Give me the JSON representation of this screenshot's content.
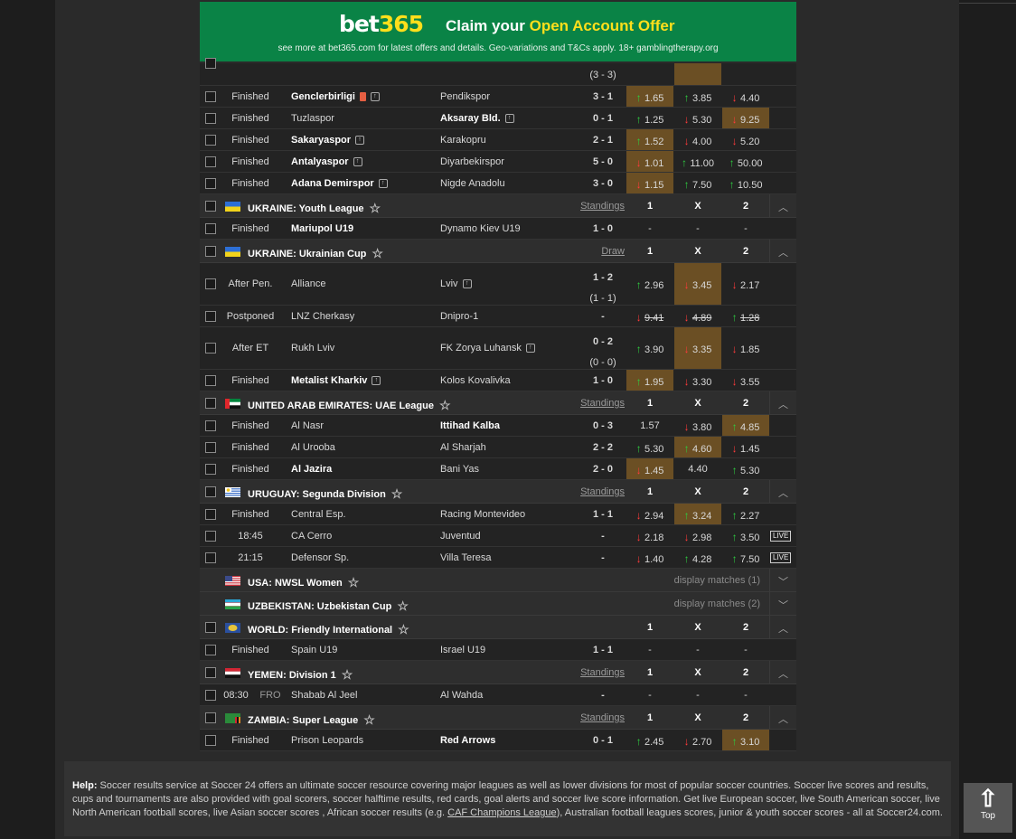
{
  "banner": {
    "logo_a": "bet",
    "logo_b": "365",
    "claim_a": "Claim your ",
    "claim_b": "Open Account Offer",
    "fine": "see more at bet365.com for latest offers and details. Geo-variations and T&Cs apply. 18+ gamblingtherapy.org"
  },
  "partial": {
    "score": "(3 - 3)"
  },
  "rows": [
    {
      "type": "m",
      "status": "Finished",
      "home": "Genclerbirligi",
      "hb": true,
      "hred": true,
      "htv": true,
      "away": "Pendikspor",
      "score": "3 - 1",
      "o": [
        [
          "1.65",
          "up",
          1
        ],
        [
          "3.85",
          "up",
          0
        ],
        [
          "4.40",
          "dn",
          0
        ]
      ]
    },
    {
      "type": "m",
      "status": "Finished",
      "home": "Tuzlaspor",
      "away": "Aksaray Bld.",
      "ab": true,
      "atv": true,
      "score": "0 - 1",
      "o": [
        [
          "1.25",
          "up",
          0
        ],
        [
          "5.30",
          "dn",
          0
        ],
        [
          "9.25",
          "dn",
          1
        ]
      ]
    },
    {
      "type": "m",
      "status": "Finished",
      "home": "Sakaryaspor",
      "hb": true,
      "htv": true,
      "away": "Karakopru",
      "score": "2 - 1",
      "o": [
        [
          "1.52",
          "up",
          1
        ],
        [
          "4.00",
          "dn",
          0
        ],
        [
          "5.20",
          "dn",
          0
        ]
      ]
    },
    {
      "type": "m",
      "status": "Finished",
      "home": "Antalyaspor",
      "hb": true,
      "htv": true,
      "away": "Diyarbekirspor",
      "score": "5 - 0",
      "o": [
        [
          "1.01",
          "dn",
          1
        ],
        [
          "11.00",
          "up",
          0
        ],
        [
          "50.00",
          "up",
          0
        ]
      ]
    },
    {
      "type": "m",
      "status": "Finished",
      "home": "Adana Demirspor",
      "hb": true,
      "htv": true,
      "away": "Nigde Anadolu",
      "score": "3 - 0",
      "o": [
        [
          "1.15",
          "dn",
          1
        ],
        [
          "7.50",
          "up",
          0
        ],
        [
          "10.50",
          "up",
          0
        ]
      ]
    },
    {
      "type": "h",
      "flag": "ua",
      "name": "UKRAINE: Youth League",
      "stand": "Standings",
      "c1": "1",
      "cx": "X",
      "c2": "2",
      "chev": "^"
    },
    {
      "type": "m",
      "status": "Finished",
      "home": "Mariupol U19",
      "hb": true,
      "away": "Dynamo Kiev U19",
      "score": "1 - 0",
      "o": [
        [
          "-",
          "",
          0
        ],
        [
          "-",
          "",
          0
        ],
        [
          "-",
          "",
          0
        ]
      ]
    },
    {
      "type": "h",
      "flag": "ua",
      "name": "UKRAINE: Ukrainian Cup",
      "stand": "Draw",
      "c1": "1",
      "cx": "X",
      "c2": "2",
      "chev": "^"
    },
    {
      "type": "m2",
      "status": "After Pen.",
      "home": "Alliance",
      "away": "Lviv",
      "atv": true,
      "score": "1 - 2",
      "sub": "(1 - 1)",
      "o": [
        [
          "2.96",
          "up",
          0
        ],
        [
          "3.45",
          "dn",
          1
        ],
        [
          "2.17",
          "dn",
          0
        ]
      ]
    },
    {
      "type": "m",
      "status": "Postponed",
      "home": "LNZ Cherkasy",
      "away": "Dnipro-1",
      "score": "-",
      "o": [
        [
          "9.41",
          "dn",
          0,
          1
        ],
        [
          "4.89",
          "dn",
          0,
          1
        ],
        [
          "1.28",
          "up",
          0,
          1
        ]
      ]
    },
    {
      "type": "m2",
      "status": "After ET",
      "home": "Rukh Lviv",
      "away": "FK Zorya Luhansk",
      "atv": true,
      "score": "0 - 2",
      "sub": "(0 - 0)",
      "o": [
        [
          "3.90",
          "up",
          0
        ],
        [
          "3.35",
          "dn",
          1
        ],
        [
          "1.85",
          "dn",
          0
        ]
      ]
    },
    {
      "type": "m",
      "status": "Finished",
      "home": "Metalist Kharkiv",
      "hb": true,
      "htv": true,
      "away": "Kolos Kovalivka",
      "score": "1 - 0",
      "o": [
        [
          "1.95",
          "up",
          1
        ],
        [
          "3.30",
          "dn",
          0
        ],
        [
          "3.55",
          "dn",
          0
        ]
      ]
    },
    {
      "type": "h",
      "flag": "ae",
      "name": "UNITED ARAB EMIRATES: UAE League",
      "stand": "Standings",
      "c1": "1",
      "cx": "X",
      "c2": "2",
      "chev": "^"
    },
    {
      "type": "m",
      "status": "Finished",
      "home": "Al Nasr",
      "away": "Ittihad Kalba",
      "ab": true,
      "score": "0 - 3",
      "o": [
        [
          "1.57",
          "",
          0
        ],
        [
          "3.80",
          "dn",
          0
        ],
        [
          "4.85",
          "up",
          1
        ]
      ]
    },
    {
      "type": "m",
      "status": "Finished",
      "home": "Al Urooba",
      "away": "Al Sharjah",
      "score": "2 - 2",
      "o": [
        [
          "5.30",
          "up",
          0
        ],
        [
          "4.60",
          "up",
          1
        ],
        [
          "1.45",
          "dn",
          0
        ]
      ]
    },
    {
      "type": "m",
      "status": "Finished",
      "home": "Al Jazira",
      "hb": true,
      "away": "Bani Yas",
      "score": "2 - 0",
      "o": [
        [
          "1.45",
          "dn",
          1
        ],
        [
          "4.40",
          "",
          0
        ],
        [
          "5.30",
          "up",
          0
        ]
      ]
    },
    {
      "type": "h",
      "flag": "uy",
      "name": "URUGUAY: Segunda Division",
      "stand": "Standings",
      "c1": "1",
      "cx": "X",
      "c2": "2",
      "chev": "^"
    },
    {
      "type": "m",
      "status": "Finished",
      "home": "Central Esp.",
      "away": "Racing Montevideo",
      "score": "1 - 1",
      "o": [
        [
          "2.94",
          "dn",
          0
        ],
        [
          "3.24",
          "up",
          1
        ],
        [
          "2.27",
          "up",
          0
        ]
      ]
    },
    {
      "type": "m",
      "status": "18:45",
      "home": "CA Cerro",
      "away": "Juventud",
      "score": "-",
      "o": [
        [
          "2.18",
          "dn",
          0
        ],
        [
          "2.98",
          "dn",
          0
        ],
        [
          "3.50",
          "up",
          0
        ]
      ],
      "live": "LIVE"
    },
    {
      "type": "m",
      "status": "21:15",
      "home": "Defensor Sp.",
      "away": "Villa Teresa",
      "score": "-",
      "o": [
        [
          "1.40",
          "dn",
          0
        ],
        [
          "4.28",
          "up",
          0
        ],
        [
          "7.50",
          "up",
          0
        ]
      ],
      "live": "LIVE"
    },
    {
      "type": "hc",
      "flag": "us",
      "name": "USA: NWSL Women",
      "disp": "display matches (1)",
      "chev": "v"
    },
    {
      "type": "hc",
      "flag": "uz",
      "name": "UZBEKISTAN: Uzbekistan Cup",
      "disp": "display matches (2)",
      "chev": "v"
    },
    {
      "type": "h",
      "flag": "world",
      "name": "WORLD: Friendly International",
      "stand": "",
      "c1": "1",
      "cx": "X",
      "c2": "2",
      "chev": "^"
    },
    {
      "type": "m",
      "status": "Finished",
      "home": "Spain U19",
      "away": "Israel U19",
      "score": "1 - 1",
      "o": [
        [
          "-",
          "",
          0
        ],
        [
          "-",
          "",
          0
        ],
        [
          "-",
          "",
          0
        ]
      ]
    },
    {
      "type": "h",
      "flag": "ye",
      "name": "YEMEN: Division 1",
      "stand": "Standings",
      "c1": "1",
      "cx": "X",
      "c2": "2",
      "chev": "^"
    },
    {
      "type": "m",
      "status": "08:30",
      "fro": "FRO",
      "home": "Shabab Al Jeel",
      "away": "Al Wahda",
      "score": "-",
      "o": [
        [
          "-",
          "",
          0
        ],
        [
          "-",
          "",
          0
        ],
        [
          "-",
          "",
          0
        ]
      ]
    },
    {
      "type": "h",
      "flag": "zm",
      "name": "ZAMBIA: Super League",
      "stand": "Standings",
      "c1": "1",
      "cx": "X",
      "c2": "2",
      "chev": "^"
    },
    {
      "type": "m",
      "status": "Finished",
      "home": "Prison Leopards",
      "away": "Red Arrows",
      "ab": true,
      "score": "0 - 1",
      "o": [
        [
          "2.45",
          "up",
          0
        ],
        [
          "2.70",
          "dn",
          0
        ],
        [
          "3.10",
          "up",
          1
        ]
      ]
    }
  ],
  "help": {
    "label": "Help:",
    "text1": " Soccer results service at Soccer 24 offers an ultimate soccer resource covering major leagues as well as lower divisions for most of popular soccer countries. Soccer live scores and results, cups and tournaments are also provided with goal scorers, soccer halftime results, red cards, goal alerts and soccer live score information. Get live European soccer, live South American soccer, live North American football scores, live Asian soccer scores , African soccer results (e.g. ",
    "link": "CAF Champions League",
    "text2": "), Australian football leagues scores, junior & youth soccer scores - all at Soccer24.com."
  },
  "top": {
    "arrow": "🡑",
    "label": "Top"
  }
}
